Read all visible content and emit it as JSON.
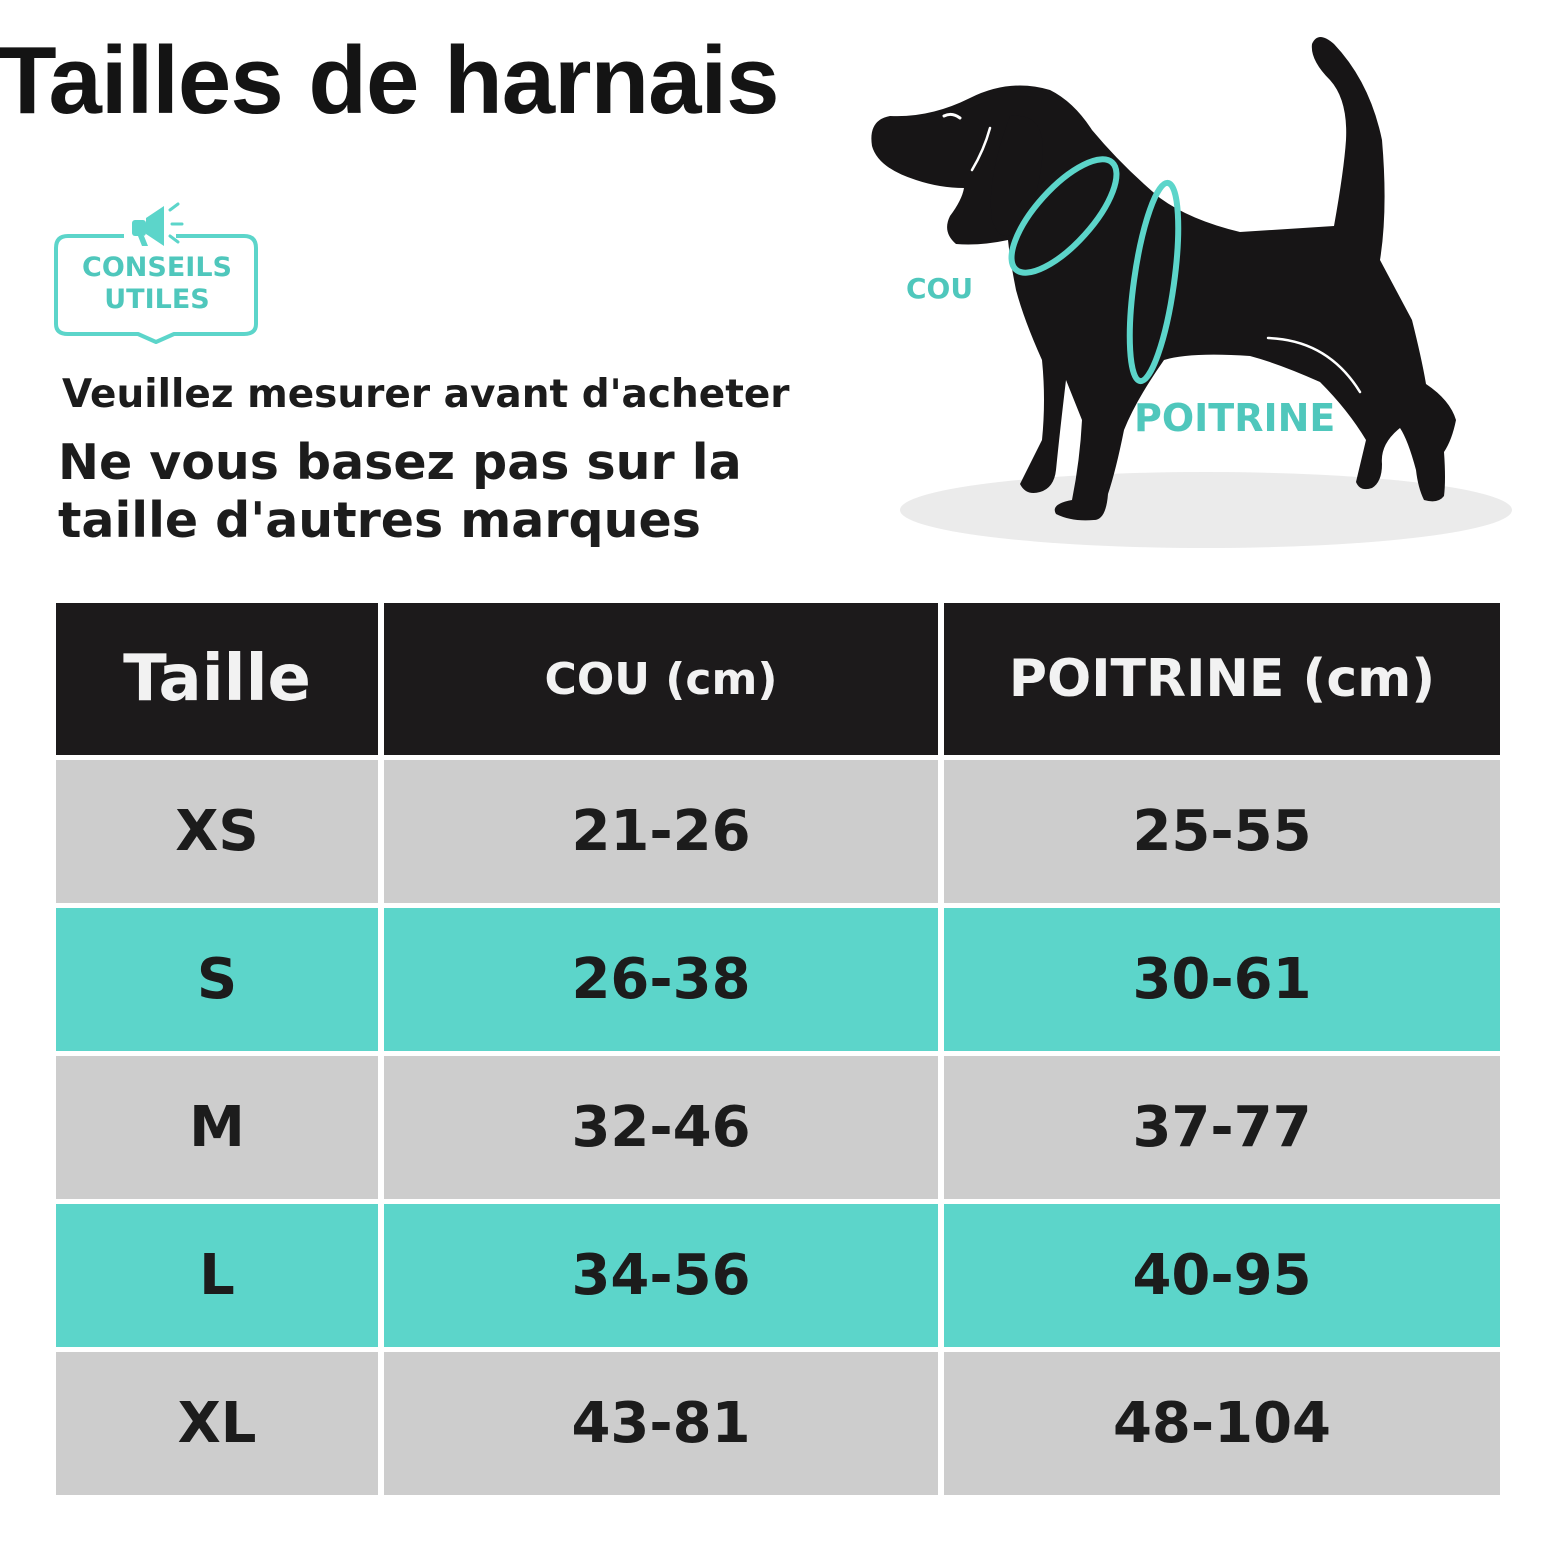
{
  "title": "Tailles de harnais",
  "tips_badge": {
    "line1": "CONSEILS",
    "line2": "UTILES",
    "icon": "megaphone-icon"
  },
  "subtitle1": "Veuillez mesurer avant d'acheter",
  "subtitle2": "Ne vous basez pas sur la taille d'autres marques",
  "dog_labels": {
    "neck": "COU",
    "chest": "POITRINE"
  },
  "colors": {
    "accent": "#5cd5ca",
    "header_bg": "#1c1a1b",
    "row_grey": "#cdcdcd"
  },
  "table": {
    "headers": [
      "Taille",
      "COU (cm)",
      "POITRINE (cm)"
    ],
    "rows": [
      {
        "size": "XS",
        "neck": "21-26",
        "chest": "25-55"
      },
      {
        "size": "S",
        "neck": "26-38",
        "chest": "30-61"
      },
      {
        "size": "M",
        "neck": "32-46",
        "chest": "37-77"
      },
      {
        "size": "L",
        "neck": "34-56",
        "chest": "40-95"
      },
      {
        "size": "XL",
        "neck": "43-81",
        "chest": "48-104"
      }
    ]
  }
}
